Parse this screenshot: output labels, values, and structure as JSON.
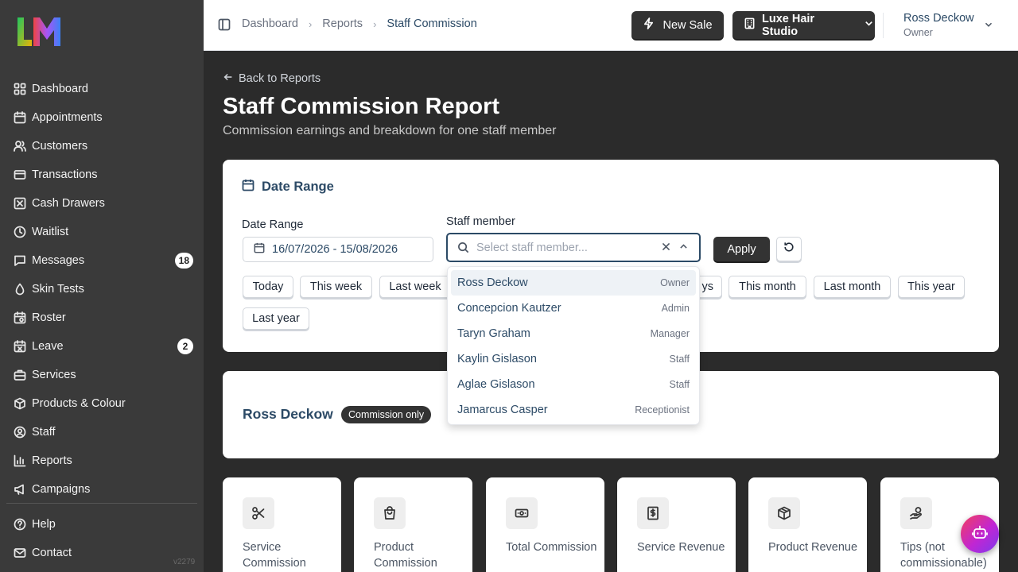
{
  "colors": {
    "sidebar_bg": "#3a3a3a",
    "main_bg": "#2b2b2b",
    "accent": "#2c4a66",
    "dark_button": "#333333"
  },
  "sidebar": {
    "logo_icon": "lm-logo",
    "items": [
      {
        "label": "Dashboard",
        "icon": "grid-icon"
      },
      {
        "label": "Appointments",
        "icon": "calendar-icon"
      },
      {
        "label": "Customers",
        "icon": "users-icon"
      },
      {
        "label": "Transactions",
        "icon": "receipt-icon"
      },
      {
        "label": "Cash Drawers",
        "icon": "cash-drawer-icon"
      },
      {
        "label": "Waitlist",
        "icon": "clock-icon"
      },
      {
        "label": "Messages",
        "icon": "message-icon",
        "badge": "18"
      },
      {
        "label": "Skin Tests",
        "icon": "droplet-icon"
      },
      {
        "label": "Roster",
        "icon": "roster-icon"
      },
      {
        "label": "Leave",
        "icon": "leave-icon",
        "badge": "2"
      },
      {
        "label": "Services",
        "icon": "briefcase-icon"
      },
      {
        "label": "Products & Colour",
        "icon": "package-icon"
      },
      {
        "label": "Staff",
        "icon": "user-circle-icon"
      },
      {
        "label": "Reports",
        "icon": "bar-chart-icon"
      },
      {
        "label": "Campaigns",
        "icon": "megaphone-icon"
      }
    ],
    "bottom_items": [
      {
        "label": "Help",
        "icon": "help-circle-icon"
      },
      {
        "label": "Contact",
        "icon": "mail-icon"
      }
    ],
    "version": "v2279"
  },
  "header": {
    "breadcrumb": [
      "Dashboard",
      "Reports",
      "Staff Commission"
    ],
    "new_sale_label": "New Sale",
    "studio_label": "Luxe Hair Studio",
    "user_name": "Ross Deckow",
    "user_role": "Owner"
  },
  "main": {
    "back_label": "Back to Reports",
    "title": "Staff Commission Report",
    "subtitle": "Commission earnings and breakdown for one staff member",
    "date_card": {
      "title": "Date Range",
      "date_label": "Date Range",
      "date_value": "16/07/2026 - 15/08/2026",
      "staff_label": "Staff member",
      "staff_placeholder": "Select staff member...",
      "apply_label": "Apply",
      "presets": [
        "Today",
        "This week",
        "Last week",
        "ys",
        "This month",
        "Last month",
        "This year",
        "Last year"
      ]
    },
    "staff_card": {
      "name": "Ross Deckow",
      "badge": "Commission only"
    },
    "metrics": [
      {
        "label": "Service Commission",
        "icon": "scissors-icon"
      },
      {
        "label": "Product Commission",
        "icon": "shopping-bag-icon"
      },
      {
        "label": "Total Commission",
        "icon": "banknote-icon"
      },
      {
        "label": "Service Revenue",
        "icon": "dollar-receipt-icon"
      },
      {
        "label": "Product Revenue",
        "icon": "box-icon"
      },
      {
        "label": "Tips (not commissionable)",
        "icon": "hand-coins-icon"
      }
    ]
  },
  "dropdown": {
    "options": [
      {
        "name": "Ross Deckow",
        "role": "Owner"
      },
      {
        "name": "Concepcion Kautzer",
        "role": "Admin"
      },
      {
        "name": "Taryn Graham",
        "role": "Manager"
      },
      {
        "name": "Kaylin Gislason",
        "role": "Staff"
      },
      {
        "name": "Aglae Gislason",
        "role": "Staff"
      },
      {
        "name": "Jamarcus Casper",
        "role": "Receptionist"
      }
    ]
  }
}
